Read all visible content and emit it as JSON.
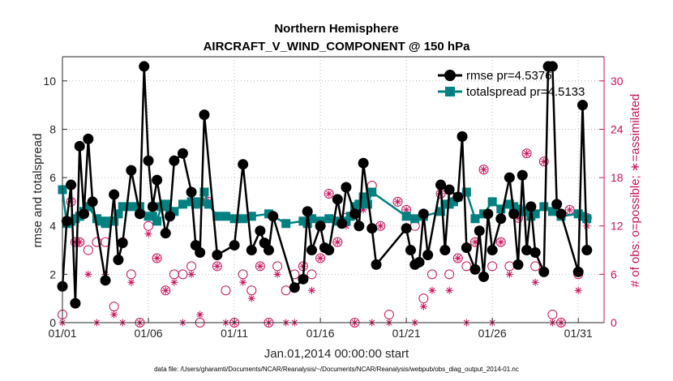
{
  "chart_data": {
    "type": "line",
    "title": "Northern Hemisphere",
    "subtitle": "AIRCRAFT_V_WIND_COMPONENT @ 150 hPa",
    "xlabel": "Jan.01,2014 00:00:00 start",
    "ylabel_left": "rmse and totalspread",
    "ylabel_right": "# of obs: o=possible; ∗=assimilated",
    "footnote": "data file: /Users/gharamti/Documents/NCAR/Reanalysis/~/Documents/NCAR/Reanalysis/webpub/obs_diag_output_2014-01.nc",
    "xlim": [
      1,
      32.5
    ],
    "ylim_left": [
      0,
      11
    ],
    "ylim_right": [
      0,
      33
    ],
    "xticks": [
      1,
      6,
      11,
      16,
      21,
      26,
      31
    ],
    "xtick_labels": [
      "01/01",
      "01/06",
      "01/11",
      "01/16",
      "01/21",
      "01/26",
      "01/31"
    ],
    "yticks_left": [
      "0",
      "2",
      "4",
      "6",
      "8",
      "10"
    ],
    "yticks_right": [
      "0",
      "6",
      "12",
      "18",
      "24",
      "30"
    ],
    "grid": true,
    "legend_position": "top-right",
    "colors": {
      "rmse": "#000000",
      "totalspread": "#008080",
      "obs": "#c8105a"
    },
    "series": [
      {
        "name": "rmse pr=4.5376",
        "axis": "left",
        "marker": "circle",
        "x": [
          1.0,
          1.25,
          1.5,
          1.75,
          2.0,
          2.25,
          2.5,
          2.75,
          3.5,
          4.0,
          4.25,
          4.5,
          5.0,
          5.5,
          5.75,
          6.0,
          6.25,
          6.5,
          7.0,
          7.25,
          7.5,
          8.0,
          8.5,
          8.75,
          9.0,
          9.25,
          10.0,
          11.0,
          11.5,
          12.0,
          12.5,
          12.75,
          13.0,
          13.25,
          14.5,
          15.0,
          15.25,
          15.5,
          16.0,
          16.25,
          16.5,
          17.0,
          17.25,
          17.5,
          18.0,
          18.25,
          18.5,
          19.0,
          19.25,
          21.0,
          21.25,
          21.5,
          21.75,
          22.0,
          22.25,
          23.0,
          23.25,
          23.5,
          24.0,
          24.25,
          24.5,
          25.0,
          25.25,
          25.5,
          25.75,
          26.0,
          26.5,
          27.0,
          27.25,
          27.5,
          27.75,
          28.0,
          28.25,
          28.5,
          29.0,
          29.25,
          29.5,
          29.75,
          30.0,
          31.0,
          31.25,
          31.5
        ],
        "values": [
          1.5,
          4.2,
          5.7,
          0.8,
          7.3,
          4.5,
          7.6,
          5.0,
          1.75,
          5.3,
          2.6,
          3.3,
          6.3,
          4.5,
          10.6,
          6.7,
          4.8,
          5.9,
          3.7,
          4.4,
          6.7,
          7.0,
          5.4,
          3.2,
          2.9,
          8.6,
          2.8,
          3.2,
          6.55,
          3.0,
          3.8,
          3.3,
          3.0,
          4.4,
          1.45,
          1.8,
          4.6,
          3.0,
          4.0,
          3.1,
          3.0,
          5.1,
          4.1,
          5.6,
          4.5,
          4.0,
          6.6,
          3.9,
          2.4,
          3.9,
          3.0,
          2.4,
          2.5,
          4.5,
          2.8,
          5.7,
          3.0,
          5.5,
          5.2,
          7.7,
          3.1,
          2.2,
          3.8,
          1.9,
          4.5,
          3.0,
          4.3,
          6.0,
          4.5,
          2.4,
          6.1,
          3.0,
          4.8,
          2.9,
          2.1,
          10.6,
          10.6,
          4.9,
          4.5,
          2.1,
          9.0,
          3.0
        ]
      },
      {
        "name": "totalspread pr=4.5133",
        "axis": "left",
        "marker": "square",
        "x": [
          1.0,
          1.25,
          1.5,
          1.75,
          2.0,
          2.25,
          2.5,
          3.0,
          3.25,
          3.5,
          3.75,
          4.0,
          4.25,
          4.5,
          5.0,
          5.5,
          6.0,
          6.25,
          6.5,
          6.75,
          7.0,
          7.25,
          7.5,
          8.0,
          8.5,
          8.75,
          9.0,
          9.25,
          9.5,
          10.0,
          10.5,
          11.0,
          11.5,
          12.0,
          13.0,
          14.0,
          15.0,
          15.25,
          15.5,
          16.0,
          16.5,
          17.0,
          17.5,
          17.75,
          18.0,
          18.25,
          18.5,
          18.75,
          19.0,
          21.0,
          21.5,
          22.0,
          23.0,
          23.25,
          23.5,
          23.75,
          24.0,
          24.5,
          25.0,
          25.5,
          26.0,
          26.5,
          27.0,
          27.25,
          27.5,
          27.75,
          28.0,
          28.25,
          28.5,
          29.0,
          29.5,
          30.0,
          31.0,
          31.25,
          31.5
        ],
        "values": [
          5.5,
          4.1,
          4.2,
          4.3,
          4.4,
          4.6,
          4.8,
          4.3,
          4.2,
          4.1,
          4.2,
          4.2,
          4.5,
          4.8,
          4.8,
          4.8,
          4.4,
          4.4,
          4.2,
          4.8,
          4.9,
          4.6,
          4.6,
          4.9,
          5.0,
          4.9,
          5.0,
          5.4,
          4.9,
          4.4,
          4.4,
          4.3,
          4.3,
          4.4,
          4.5,
          4.1,
          4.2,
          4.1,
          4.3,
          4.2,
          4.3,
          4.2,
          4.2,
          4.4,
          4.8,
          4.9,
          5.2,
          4.9,
          5.4,
          4.4,
          4.3,
          4.4,
          4.6,
          4.9,
          4.9,
          5.0,
          5.2,
          5.4,
          4.3,
          4.5,
          5.0,
          4.7,
          4.9,
          4.8,
          4.7,
          4.6,
          4.6,
          4.4,
          4.5,
          4.8,
          4.6,
          4.4,
          4.5,
          4.4,
          4.3
        ]
      },
      {
        "name": "possible obs",
        "axis": "right",
        "marker": "open-circle",
        "x": [
          1.0,
          1.5,
          1.75,
          2.0,
          2.5,
          3.0,
          3.5,
          4.0,
          4.5,
          5.0,
          5.5,
          6.0,
          6.5,
          7.0,
          7.5,
          8.0,
          8.5,
          9.0,
          9.5,
          10.0,
          10.5,
          11.0,
          11.5,
          12.0,
          12.5,
          13.0,
          13.5,
          14.0,
          14.5,
          15.0,
          15.5,
          16.0,
          16.5,
          17.0,
          17.5,
          18.0,
          18.5,
          19.0,
          19.5,
          20.0,
          20.5,
          21.0,
          21.5,
          22.0,
          22.5,
          23.0,
          23.5,
          24.0,
          24.5,
          25.0,
          25.5,
          26.0,
          26.5,
          27.0,
          27.5,
          28.0,
          28.5,
          29.0,
          29.5,
          30.0,
          30.5,
          31.0,
          31.5
        ],
        "values": [
          1,
          15,
          10,
          10,
          9,
          10,
          10,
          2,
          10,
          6,
          0,
          12,
          8,
          4,
          6,
          6,
          7,
          0,
          15,
          7,
          4,
          0,
          6,
          4,
          7,
          0,
          7,
          4,
          6,
          7,
          6,
          8,
          16,
          10,
          13,
          0,
          15,
          17,
          12,
          1,
          15,
          14,
          12,
          3,
          6,
          16,
          6,
          8,
          7,
          10,
          19,
          7,
          10,
          7,
          13,
          21,
          7,
          20,
          1,
          0,
          14,
          6,
          13
        ]
      },
      {
        "name": "assimilated obs",
        "axis": "right",
        "marker": "asterisk",
        "x": [
          1.0,
          1.5,
          1.75,
          2.0,
          2.5,
          3.0,
          3.5,
          4.0,
          4.5,
          5.0,
          5.5,
          6.0,
          6.5,
          7.0,
          7.5,
          8.0,
          8.5,
          9.0,
          9.5,
          10.0,
          10.5,
          11.0,
          11.5,
          12.0,
          12.5,
          13.0,
          13.5,
          14.0,
          14.5,
          15.0,
          15.5,
          16.0,
          16.5,
          17.0,
          17.5,
          18.0,
          18.5,
          19.0,
          19.5,
          20.0,
          20.5,
          21.0,
          21.5,
          22.0,
          22.5,
          23.0,
          23.5,
          24.0,
          24.5,
          25.0,
          25.5,
          26.0,
          26.5,
          27.0,
          27.5,
          28.0,
          28.5,
          29.0,
          29.5,
          30.0,
          30.5,
          31.0,
          31.5
        ],
        "values": [
          0,
          15,
          10,
          10,
          6,
          0,
          6,
          1,
          0,
          5,
          0,
          11,
          8,
          4,
          5,
          0,
          6,
          1,
          15,
          7,
          0,
          0,
          5,
          3,
          7,
          0,
          6,
          0,
          0,
          7,
          4,
          8,
          16,
          10,
          12,
          0,
          14,
          0,
          12,
          0,
          15,
          14,
          0,
          2,
          4,
          16,
          4,
          8,
          0,
          10,
          19,
          0,
          10,
          6,
          13,
          21,
          5,
          20,
          0,
          0,
          14,
          4,
          12
        ]
      }
    ]
  }
}
